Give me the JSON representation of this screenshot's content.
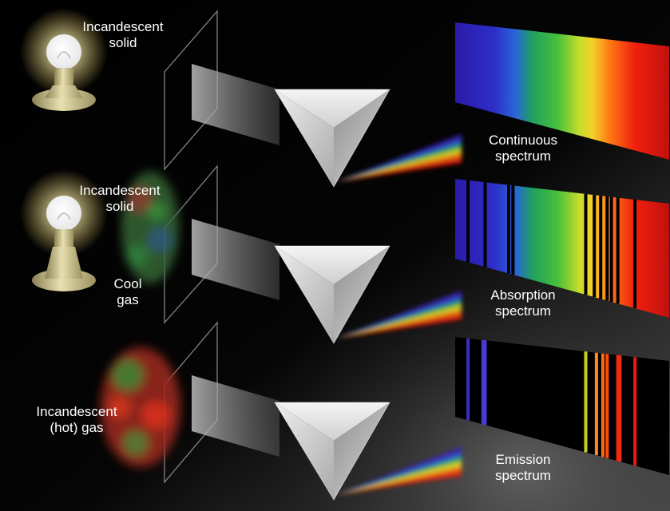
{
  "labels": {
    "source_top": [
      "Incandescent",
      "solid"
    ],
    "source_middle": [
      "Incandescent",
      "solid"
    ],
    "cool_gas": [
      "Cool",
      "gas"
    ],
    "source_bottom": [
      "Incandescent",
      "(hot) gas"
    ],
    "continuous": [
      "Continuous",
      "spectrum"
    ],
    "absorption": [
      "Absorption",
      "spectrum"
    ],
    "emission": [
      "Emission",
      "spectrum"
    ]
  },
  "colors": {
    "background_dark": "#000000",
    "background_light": "#4a4a4a",
    "violet": "#3b1fb5",
    "blue": "#2c52d8",
    "green": "#2fb84a",
    "yellow": "#e8e22a",
    "orange": "#ff6a12",
    "red": "#e81a10",
    "prism": "#e4e4e4"
  },
  "lines": {
    "absorption_fraction_positions": [
      0.06,
      0.14,
      0.25,
      0.27,
      0.61,
      0.65,
      0.68,
      0.71,
      0.73,
      0.76,
      0.84
    ],
    "emission_lines": [
      {
        "pos": 0.06,
        "color": "#3b2fc0"
      },
      {
        "pos": 0.13,
        "color": "#4a3bd0"
      },
      {
        "pos": 0.14,
        "color": "#4a3bd0"
      },
      {
        "pos": 0.61,
        "color": "#c8d020"
      },
      {
        "pos": 0.66,
        "color": "#ff8a1a"
      },
      {
        "pos": 0.69,
        "color": "#ff6a12"
      },
      {
        "pos": 0.71,
        "color": "#ff4a10"
      },
      {
        "pos": 0.76,
        "color": "#f22a10"
      },
      {
        "pos": 0.77,
        "color": "#f22a10"
      },
      {
        "pos": 0.84,
        "color": "#e81a10"
      }
    ]
  }
}
